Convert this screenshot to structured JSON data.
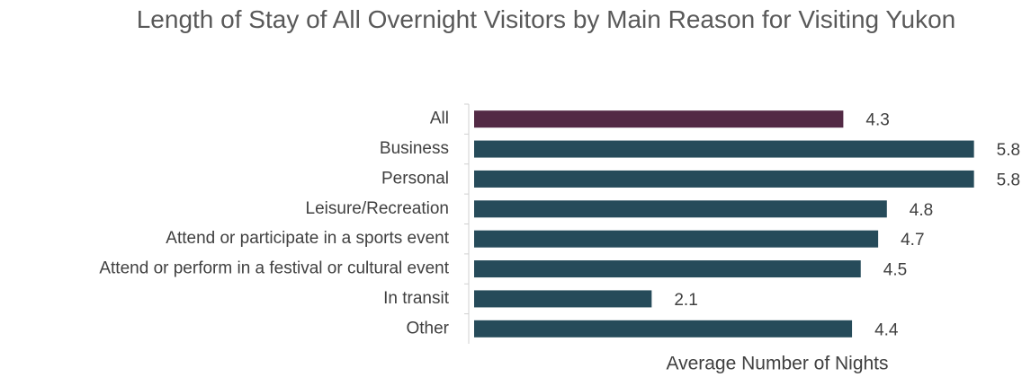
{
  "chart_data": {
    "type": "bar",
    "orientation": "horizontal",
    "title": "Length of Stay of All Overnight Visitors by Main Reason for Visiting Yukon",
    "categories": [
      "All",
      "Business",
      "Personal",
      "Leisure/Recreation",
      "Attend or participate in a sports event",
      "Attend or perform in a festival or cultural event",
      "In transit",
      "Other"
    ],
    "values": [
      4.3,
      5.8,
      5.8,
      4.8,
      4.7,
      4.5,
      2.1,
      4.4
    ],
    "colors": [
      "#532a45",
      "#264b5a",
      "#264b5a",
      "#264b5a",
      "#264b5a",
      "#264b5a",
      "#264b5a",
      "#264b5a"
    ],
    "xlabel": "Average Number of Nights",
    "xlim": [
      0,
      6
    ]
  }
}
